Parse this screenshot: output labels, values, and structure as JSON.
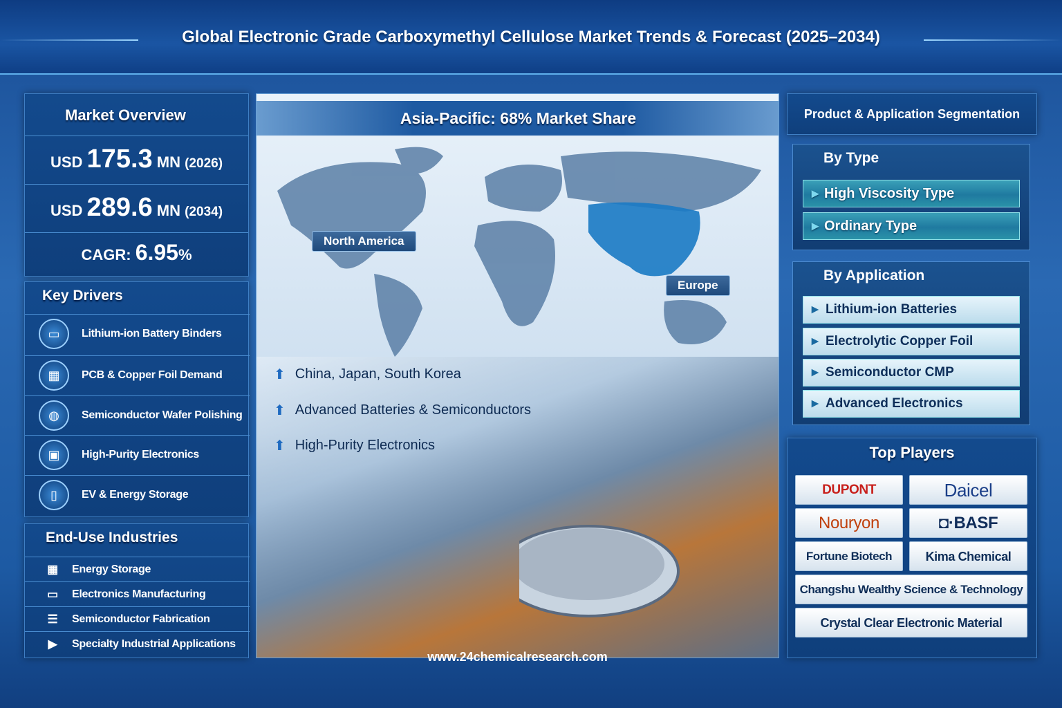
{
  "header": {
    "title": "Global Electronic Grade Carboxymethyl Cellulose Market Trends & Forecast (2025–2034)"
  },
  "market_overview": {
    "title": "Market Overview",
    "value_2026": {
      "prefix": "USD",
      "value": "175.3",
      "unit": "MN",
      "year": "(2026)"
    },
    "value_2034": {
      "prefix": "USD",
      "value": "289.6",
      "unit": "MN",
      "year": "(2034)"
    },
    "cagr": {
      "label": "CAGR:",
      "value": "6.95",
      "unit": "%"
    }
  },
  "key_drivers": {
    "title": "Key Drivers",
    "items": [
      {
        "label": "Lithium-ion Battery Binders",
        "icon": "battery-icon"
      },
      {
        "label": "PCB & Copper Foil Demand",
        "icon": "circuit-board-icon"
      },
      {
        "label": "Semiconductor Wafer Polishing",
        "icon": "globe-icon"
      },
      {
        "label": "High-Purity Electronics",
        "icon": "chip-icon"
      },
      {
        "label": "EV & Energy Storage",
        "icon": "mobile-device-icon"
      }
    ]
  },
  "end_use": {
    "title": "End-Use Industries",
    "items": [
      {
        "label": "Energy Storage",
        "icon": "calendar-grid-icon"
      },
      {
        "label": "Electronics Manufacturing",
        "icon": "monitor-icon"
      },
      {
        "label": "Semiconductor Fabrication",
        "icon": "layers-icon"
      },
      {
        "label": "Specialty Industrial Applications",
        "icon": "play-box-icon"
      }
    ]
  },
  "center": {
    "banner": "Asia-Pacific: 68% Market Share",
    "map_labels": [
      "North America",
      "Europe"
    ],
    "bullets": [
      "China, Japan, South Korea",
      "Advanced Batteries & Semiconductors",
      "High-Purity Electronics"
    ],
    "footer": "www.24chemicalresearch.com"
  },
  "segmentation": {
    "title": "Product & Application Segmentation",
    "by_type": {
      "title": "By Type",
      "items": [
        "High Viscosity Type",
        "Ordinary Type"
      ]
    },
    "by_application": {
      "title": "By Application",
      "items": [
        "Lithium-ion Batteries",
        "Electrolytic Copper Foil",
        "Semiconductor CMP",
        "Advanced Electronics"
      ]
    }
  },
  "top_players": {
    "title": "Top Players",
    "items": [
      "DUPONT",
      "Daicel",
      "Nouryon",
      "BASF",
      "Fortune Biotech",
      "Kima Chemical",
      "Changshu Wealthy Science & Technology",
      "Crystal Clear Electronic Material"
    ]
  },
  "colors": {
    "accent": "#1a55a3",
    "teal": "#2a92a8",
    "dupont_red": "#c8201c",
    "nouryon_orange": "#c0400c"
  }
}
